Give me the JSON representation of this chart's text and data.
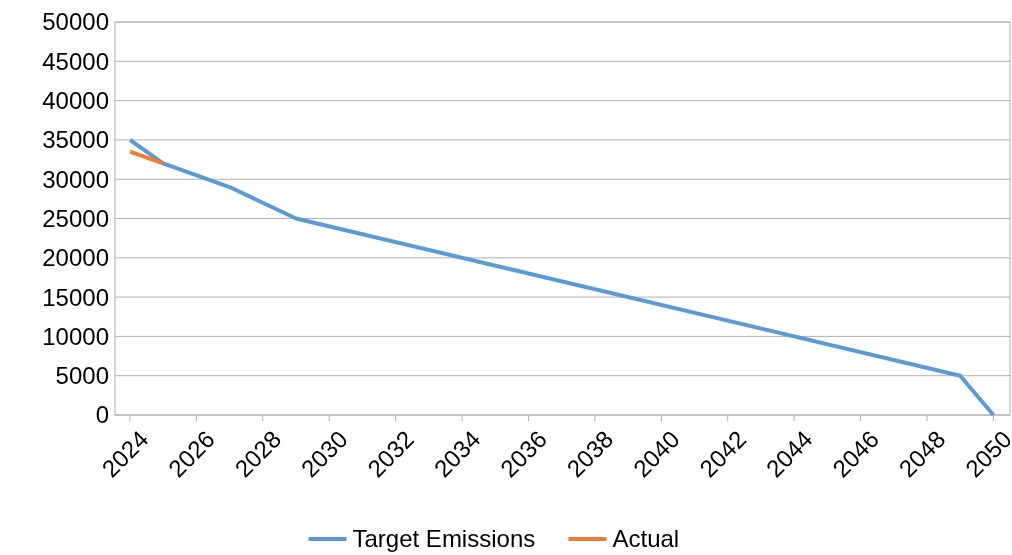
{
  "chart_data": {
    "type": "line",
    "xlim": [
      2023.55,
      2050.5
    ],
    "xticks": [
      2024,
      2026,
      2028,
      2030,
      2032,
      2034,
      2036,
      2038,
      2040,
      2042,
      2044,
      2046,
      2048,
      2050
    ],
    "ylim": [
      0,
      50000
    ],
    "yticks": [
      0,
      5000,
      10000,
      15000,
      20000,
      25000,
      30000,
      35000,
      40000,
      45000,
      50000
    ],
    "grid": "y",
    "legend": "bottom",
    "marker": "none",
    "line_style": "solid",
    "series": [
      {
        "name": "Target Emissions",
        "color": "#5b9bd5",
        "x": [
          2024,
          2025,
          2027,
          2029,
          2049,
          2050
        ],
        "values": [
          35000,
          32000,
          29000,
          25000,
          5000,
          0
        ]
      },
      {
        "name": "Actual",
        "color": "#ed7d31",
        "x": [
          2024,
          2025
        ],
        "values": [
          33500,
          32000
        ]
      }
    ]
  }
}
